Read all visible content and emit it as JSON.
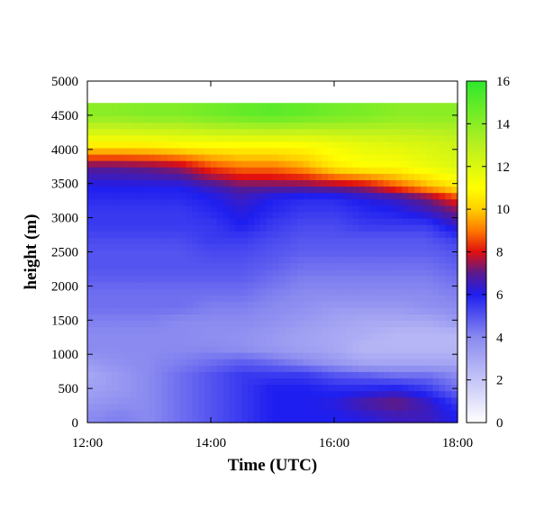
{
  "chart_data": {
    "type": "heatmap",
    "title": "",
    "xlabel": "Time (UTC)",
    "ylabel": "height (m)",
    "x_tick_labels": [
      "12:00",
      "14:00",
      "16:00",
      "18:00"
    ],
    "x_ticks_hours": [
      12,
      14,
      16,
      18
    ],
    "xlim_hours": [
      12,
      18
    ],
    "y_ticks": [
      0,
      500,
      1000,
      1500,
      2000,
      2500,
      3000,
      3500,
      4000,
      4500,
      5000
    ],
    "ylim": [
      0,
      5000
    ],
    "colorbar": {
      "range": [
        0,
        16
      ],
      "ticks": [
        0,
        2,
        4,
        6,
        8,
        10,
        12,
        14,
        16
      ],
      "colors": [
        {
          "v": 0,
          "c": "#ffffff"
        },
        {
          "v": 4,
          "c": "#8a8af0"
        },
        {
          "v": 6,
          "c": "#1e1ef0"
        },
        {
          "v": 7,
          "c": "#5a1a8c"
        },
        {
          "v": 8,
          "c": "#e01010"
        },
        {
          "v": 9,
          "c": "#ff7800"
        },
        {
          "v": 10,
          "c": "#ffd000"
        },
        {
          "v": 11,
          "c": "#ffff00"
        },
        {
          "v": 13,
          "c": "#b8f020"
        },
        {
          "v": 16,
          "c": "#2ee82e"
        }
      ]
    },
    "grid": false,
    "time_hours": [
      12.0,
      12.5,
      13.0,
      13.5,
      14.0,
      14.5,
      15.0,
      15.5,
      16.0,
      16.5,
      17.0,
      17.5,
      18.0
    ],
    "height_m": [
      100,
      300,
      500,
      700,
      900,
      1100,
      1300,
      1500,
      1700,
      1900,
      2100,
      2300,
      2500,
      2700,
      2900,
      3100,
      3300,
      3450,
      3750,
      4100,
      4500
    ],
    "values": [
      [
        4.0,
        4.2,
        4.0,
        4.5,
        5.0,
        5.5,
        6.0,
        6.0,
        6.0,
        6.2,
        6.5,
        6.5,
        6.0
      ],
      [
        3.5,
        3.8,
        4.0,
        4.5,
        5.0,
        5.5,
        6.0,
        6.0,
        6.2,
        6.8,
        7.2,
        6.5,
        5.5
      ],
      [
        3.2,
        3.5,
        4.0,
        4.5,
        5.0,
        5.5,
        6.0,
        6.0,
        5.8,
        5.8,
        6.0,
        5.5,
        4.5
      ],
      [
        3.0,
        3.5,
        4.0,
        4.5,
        5.0,
        5.5,
        5.5,
        5.5,
        5.0,
        4.8,
        4.5,
        4.5,
        4.0
      ],
      [
        3.5,
        3.8,
        4.0,
        4.2,
        4.5,
        4.8,
        4.5,
        4.0,
        3.5,
        3.0,
        3.0,
        3.0,
        3.0
      ],
      [
        4.0,
        4.0,
        4.0,
        4.0,
        4.0,
        3.8,
        3.5,
        3.2,
        3.0,
        2.5,
        2.5,
        2.5,
        2.5
      ],
      [
        4.0,
        4.0,
        4.0,
        4.0,
        3.8,
        3.8,
        3.5,
        3.2,
        3.0,
        2.8,
        2.5,
        2.5,
        2.5
      ],
      [
        4.2,
        4.2,
        4.2,
        4.0,
        4.0,
        4.0,
        3.8,
        3.5,
        3.2,
        3.0,
        3.0,
        3.0,
        3.5
      ],
      [
        4.5,
        4.5,
        4.5,
        4.5,
        4.2,
        4.2,
        4.0,
        3.8,
        3.5,
        3.5,
        3.5,
        3.8,
        4.0
      ],
      [
        4.5,
        4.5,
        4.5,
        4.5,
        4.5,
        4.5,
        4.2,
        4.0,
        4.0,
        4.0,
        4.0,
        4.0,
        4.2
      ],
      [
        4.8,
        4.8,
        4.8,
        4.8,
        4.8,
        4.8,
        4.5,
        4.2,
        4.2,
        4.2,
        4.2,
        4.2,
        4.5
      ],
      [
        5.0,
        5.0,
        5.0,
        5.0,
        5.0,
        5.0,
        4.8,
        4.5,
        4.5,
        4.5,
        4.5,
        4.5,
        4.8
      ],
      [
        5.0,
        5.0,
        5.0,
        5.0,
        5.2,
        5.2,
        5.0,
        4.8,
        4.8,
        4.8,
        4.8,
        4.8,
        5.0
      ],
      [
        5.2,
        5.2,
        5.2,
        5.2,
        5.5,
        5.5,
        5.2,
        5.0,
        5.0,
        5.0,
        5.0,
        5.0,
        5.5
      ],
      [
        5.5,
        5.5,
        5.5,
        5.5,
        5.5,
        6.0,
        5.5,
        5.2,
        5.2,
        5.5,
        5.5,
        5.5,
        6.5
      ],
      [
        5.5,
        5.5,
        5.5,
        5.5,
        5.8,
        6.2,
        5.8,
        5.5,
        5.5,
        5.8,
        6.0,
        6.5,
        7.2
      ],
      [
        5.8,
        5.8,
        5.8,
        5.8,
        6.0,
        6.5,
        6.0,
        5.8,
        5.8,
        6.2,
        6.5,
        7.2,
        8.5
      ],
      [
        6.0,
        6.0,
        6.0,
        6.0,
        6.5,
        7.0,
        7.0,
        7.0,
        7.2,
        7.5,
        8.5,
        9.5,
        10.5
      ],
      [
        7.0,
        7.0,
        7.2,
        7.5,
        8.5,
        9.0,
        9.0,
        9.5,
        10.5,
        11.0,
        11.0,
        11.5,
        12.0
      ],
      [
        11.0,
        11.0,
        11.0,
        11.2,
        11.2,
        11.2,
        11.2,
        11.2,
        11.5,
        11.8,
        12.0,
        12.2,
        12.5
      ],
      [
        14.0,
        14.0,
        14.2,
        14.2,
        14.5,
        14.8,
        15.0,
        14.8,
        14.5,
        14.3,
        14.0,
        14.0,
        14.0
      ]
    ],
    "data_top_m": 4680
  }
}
